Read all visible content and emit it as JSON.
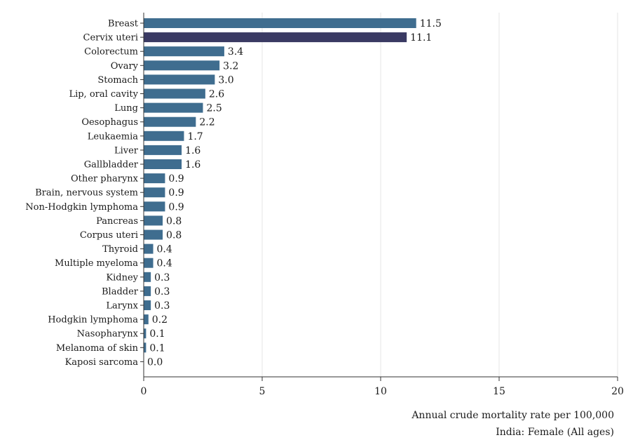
{
  "chart_data": {
    "type": "bar",
    "orientation": "horizontal",
    "categories": [
      "Breast",
      "Cervix uteri",
      "Colorectum",
      "Ovary",
      "Stomach",
      "Lip, oral cavity",
      "Lung",
      "Oesophagus",
      "Leukaemia",
      "Liver",
      "Gallbladder",
      "Other pharynx",
      "Brain, nervous system",
      "Non-Hodgkin lymphoma",
      "Pancreas",
      "Corpus uteri",
      "Thyroid",
      "Multiple myeloma",
      "Kidney",
      "Bladder",
      "Larynx",
      "Hodgkin lymphoma",
      "Nasopharynx",
      "Melanoma of skin",
      "Kaposi sarcoma"
    ],
    "values": [
      11.5,
      11.1,
      3.4,
      3.2,
      3.0,
      2.6,
      2.5,
      2.2,
      1.7,
      1.6,
      1.6,
      0.9,
      0.9,
      0.9,
      0.8,
      0.8,
      0.4,
      0.4,
      0.3,
      0.3,
      0.3,
      0.2,
      0.1,
      0.1,
      0.0
    ],
    "value_labels": [
      "11.5",
      "11.1",
      "3.4",
      "3.2",
      "3.0",
      "2.6",
      "2.5",
      "2.2",
      "1.7",
      "1.6",
      "1.6",
      "0.9",
      "0.9",
      "0.9",
      "0.8",
      "0.8",
      "0.4",
      "0.4",
      "0.3",
      "0.3",
      "0.3",
      "0.2",
      "0.1",
      "0.1",
      "0.0"
    ],
    "highlight_index": 1,
    "xticks": [
      0,
      5,
      10,
      15,
      20
    ],
    "xtick_labels": [
      "0",
      "5",
      "10",
      "15",
      "20"
    ],
    "xlim": [
      0,
      20
    ],
    "grid": "vertical",
    "legend": "none",
    "xlabel": "Annual crude mortality rate per 100,000",
    "subtitle": "India: Female (All ages)",
    "colors": {
      "bar": "#3f6d8f",
      "highlight_bar": "#3a3a63",
      "grid": "#e4e4e4",
      "axis": "#333333",
      "text": "#1a1a1a"
    }
  }
}
